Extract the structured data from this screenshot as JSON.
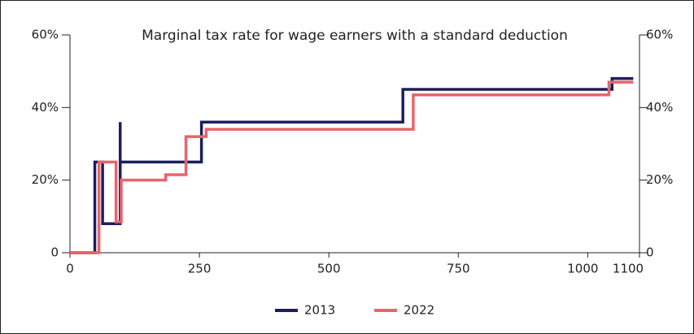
{
  "chart_data": {
    "type": "line",
    "title": "Marginal tax rate for wage earners with a standard deduction",
    "series": [
      {
        "name": "2013",
        "color": "#1b1f5e",
        "x": [
          0,
          48,
          48,
          63,
          63,
          97,
          97,
          97,
          254,
          254,
          643,
          643,
          1047,
          1047,
          1088
        ],
        "values": [
          0,
          0,
          25,
          25,
          8,
          8,
          36,
          25,
          25,
          36,
          36,
          45,
          45,
          48,
          48
        ]
      },
      {
        "name": "2022",
        "color": "#e8646c",
        "x": [
          0,
          56,
          56,
          89,
          89,
          99,
          99,
          185,
          185,
          224,
          224,
          263,
          263,
          663,
          663,
          1041,
          1041,
          1088
        ],
        "values": [
          0,
          0,
          25,
          25,
          8.5,
          8.5,
          20,
          20,
          21.5,
          21.5,
          32,
          32,
          34,
          34,
          43.5,
          43.5,
          47,
          47
        ]
      }
    ],
    "xlim": [
      0,
      1100
    ],
    "xticks": [
      0,
      250,
      500,
      750,
      1000,
      1100
    ],
    "ylim": [
      0,
      60
    ],
    "yticks": [
      0,
      {
        "value": 20,
        "label": "20%"
      },
      {
        "value": 40,
        "label": "40%"
      },
      {
        "value": 60,
        "label": "60%"
      }
    ],
    "y2lim": [
      0,
      60
    ],
    "y2ticks": [
      0,
      {
        "value": 20,
        "label": "20%"
      },
      {
        "value": 40,
        "label": "40%"
      },
      {
        "value": 60,
        "label": "60%"
      }
    ],
    "legend": "bottom"
  }
}
